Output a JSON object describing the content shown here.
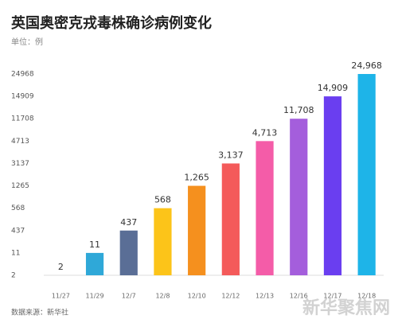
{
  "chart_data": {
    "type": "bar",
    "title": "英国奥密克戎毒株确诊病例变化",
    "subtitle": "单位：例",
    "source": "数据来源：新华社",
    "watermark": "新华聚焦网",
    "categories": [
      "11/27",
      "11/29",
      "12/7",
      "12/8",
      "12/10",
      "12/12",
      "12/13",
      "12/16",
      "12/17",
      "12/18"
    ],
    "values": [
      2,
      11,
      437,
      568,
      1265,
      3137,
      4713,
      11708,
      14909,
      24968
    ],
    "value_labels": [
      "2",
      "11",
      "437",
      "568",
      "1,265",
      "3,137",
      "4,713",
      "11,708",
      "14,909",
      "24,968"
    ],
    "colors": [
      "#8fd3f0",
      "#2fa8d8",
      "#5a6e96",
      "#fcc419",
      "#f5901e",
      "#f45a5a",
      "#f45ca8",
      "#a45edc",
      "#6a3ef0",
      "#1eb4e8"
    ],
    "ylim": [
      2,
      24968
    ],
    "yticks": [
      2,
      11,
      437,
      568,
      1265,
      3137,
      4713,
      11708,
      14909,
      24968
    ],
    "grid": false
  }
}
